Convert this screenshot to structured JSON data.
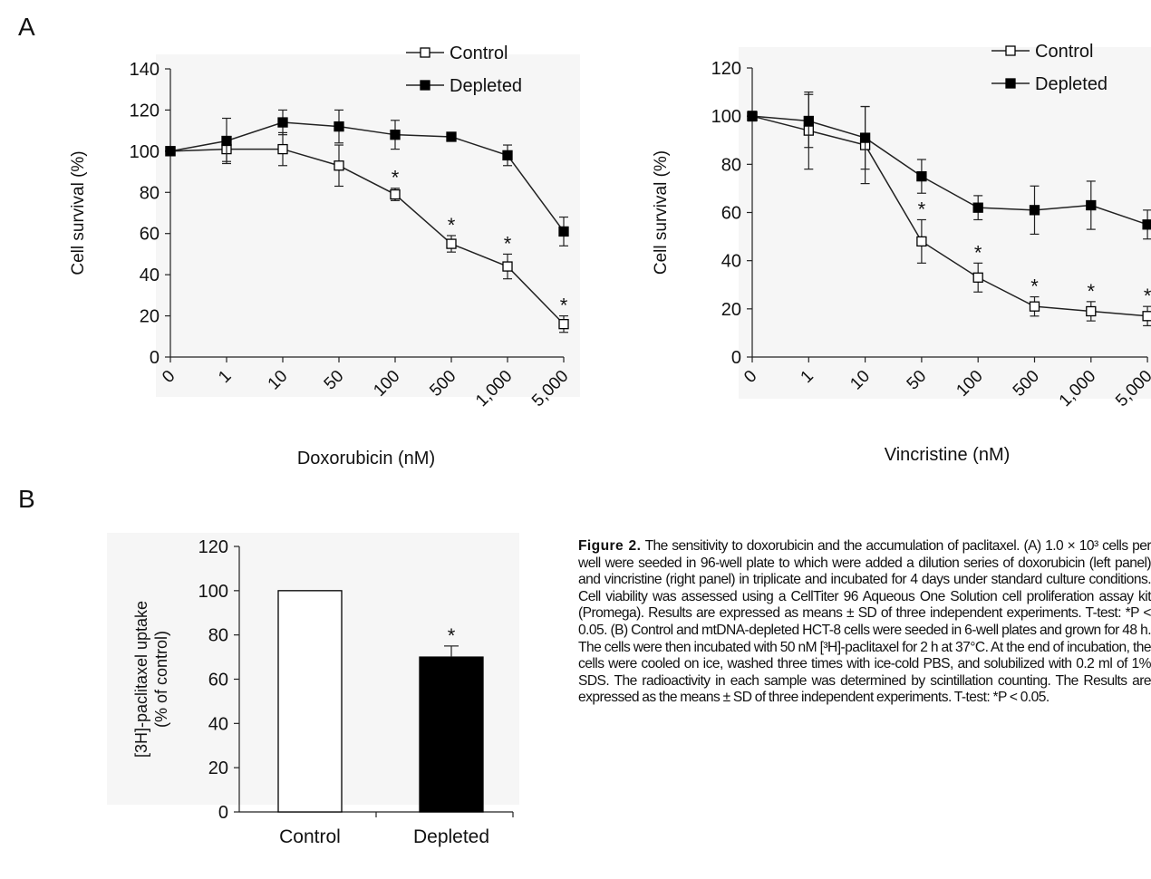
{
  "panel_labels": {
    "a": "A",
    "b": "B"
  },
  "colors": {
    "plot_bg": "#f6f6f6",
    "series_control_fill": "#ffffff",
    "series_depleted_fill": "#000000",
    "line": "#222222"
  },
  "chart_data": [
    {
      "type": "line",
      "panel": "A-left",
      "categories": [
        "0",
        "1",
        "10",
        "50",
        "100",
        "500",
        "1,000",
        "5,000"
      ],
      "xlabel": "Doxorubicin (nM)",
      "ylabel": "Cell survival (%)",
      "ylim": [
        0,
        140
      ],
      "yticks": [
        0,
        20,
        40,
        60,
        80,
        100,
        120,
        140
      ],
      "legend": "top-right",
      "grid": false,
      "series": [
        {
          "name": "Control",
          "marker": "open-square",
          "values": [
            100,
            101,
            101,
            93,
            79,
            55,
            44,
            16
          ],
          "errors": [
            2,
            6,
            8,
            10,
            3,
            4,
            6,
            4
          ]
        },
        {
          "name": "Depleted",
          "marker": "filled-square",
          "values": [
            100,
            105,
            114,
            112,
            108,
            107,
            98,
            61
          ],
          "errors": [
            2,
            11,
            6,
            8,
            7,
            2,
            5,
            7
          ]
        }
      ],
      "annotations": [
        {
          "category": "100",
          "y": 79,
          "text": "*"
        },
        {
          "category": "500",
          "y": 55,
          "text": "*"
        },
        {
          "category": "1,000",
          "y": 44,
          "text": "*"
        },
        {
          "category": "5,000",
          "y": 16,
          "text": "*"
        }
      ]
    },
    {
      "type": "line",
      "panel": "A-right",
      "categories": [
        "0",
        "1",
        "10",
        "50",
        "100",
        "500",
        "1,000",
        "5,000"
      ],
      "xlabel": "Vincristine (nM)",
      "ylabel": "Cell survival (%)",
      "ylim": [
        0,
        120
      ],
      "yticks": [
        0,
        20,
        40,
        60,
        80,
        100,
        120
      ],
      "legend": "top-right",
      "grid": false,
      "series": [
        {
          "name": "Control",
          "marker": "open-square",
          "values": [
            100,
            94,
            88,
            48,
            33,
            21,
            19,
            17
          ],
          "errors": [
            2,
            16,
            16,
            9,
            6,
            4,
            4,
            4
          ]
        },
        {
          "name": "Depleted",
          "marker": "filled-square",
          "values": [
            100,
            98,
            91,
            75,
            62,
            61,
            63,
            55
          ],
          "errors": [
            2,
            11,
            13,
            7,
            5,
            10,
            10,
            6
          ]
        }
      ],
      "annotations": [
        {
          "category": "50",
          "y": 48,
          "text": "*"
        },
        {
          "category": "100",
          "y": 33,
          "text": "*"
        },
        {
          "category": "500",
          "y": 21,
          "text": "*"
        },
        {
          "category": "1,000",
          "y": 19,
          "text": "*"
        },
        {
          "category": "5,000",
          "y": 17,
          "text": "*"
        }
      ]
    },
    {
      "type": "bar",
      "panel": "B",
      "categories": [
        "Control",
        "Depleted"
      ],
      "values": [
        100,
        70
      ],
      "errors": [
        0,
        5
      ],
      "bar_fills": [
        "#ffffff",
        "#000000"
      ],
      "ylabel_line1": "[3H]-paclitaxel uptake",
      "ylabel_line2": "(% of control)",
      "ylim": [
        0,
        120
      ],
      "yticks": [
        0,
        20,
        40,
        60,
        80,
        100,
        120
      ],
      "annotations": [
        {
          "category": "Depleted",
          "y": 70,
          "text": "*"
        }
      ]
    }
  ],
  "caption": {
    "label": "Figure 2.",
    "text": " The sensitivity to doxorubicin and the accumulation of paclitaxel. (A) 1.0 × 10³ cells per well were seeded in 96-well plate to which were added a dilution series of doxorubicin (left panel) and vincristine (right panel) in triplicate and incubated for 4 days under standard culture conditions. Cell viability was assessed using a CellTiter 96 Aqueous One Solution cell proliferation assay kit (Promega). Results are expressed as means ± SD of three independent experiments. T-test: *P < 0.05. (B) Control and mtDNA-depleted HCT-8 cells were seeded in 6-well plates and grown for 48 h. The cells were then incubated with 50 nM [³H]-paclitaxel for 2 h at 37°C. At the end of incubation, the cells were cooled on ice, washed three times with ice-cold PBS, and solubilized with 0.2 ml of 1% SDS. The radioactivity in each sample was determined by scintillation counting. The Results are expressed as the means ± SD of three independent experiments. T-test: *P < 0.05."
  }
}
